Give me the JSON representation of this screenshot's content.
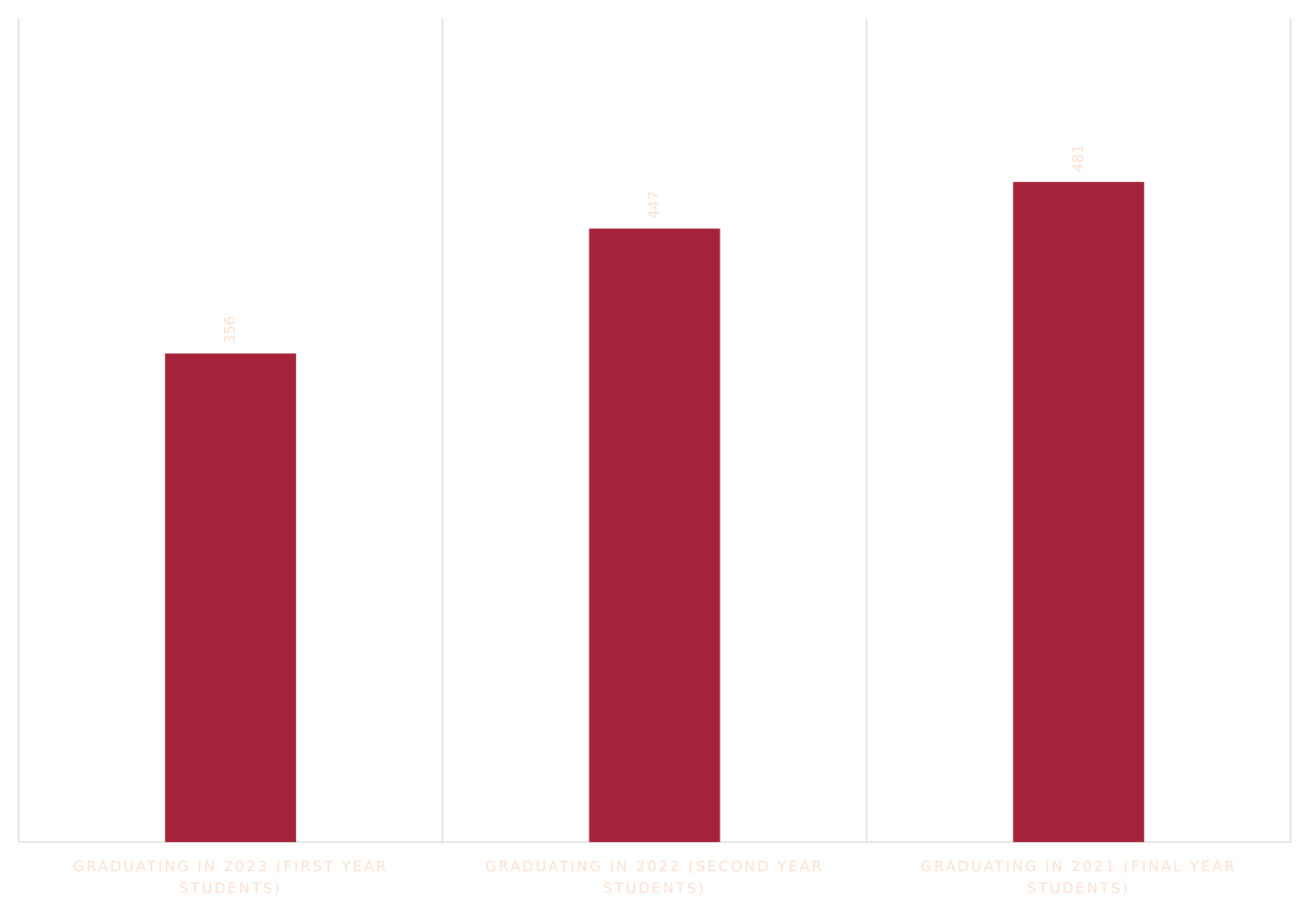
{
  "chart_data": {
    "type": "bar",
    "categories": [
      "GRADUATING IN 2023 (FIRST YEAR STUDENTS)",
      "GRADUATING IN 2022 (SECOND YEAR STUDENTS)",
      "GRADUATING IN 2021 (FINAL YEAR STUDENTS)"
    ],
    "values": [
      356,
      447,
      481
    ],
    "color": "#a4233b",
    "ylim": [
      0,
      600
    ]
  }
}
